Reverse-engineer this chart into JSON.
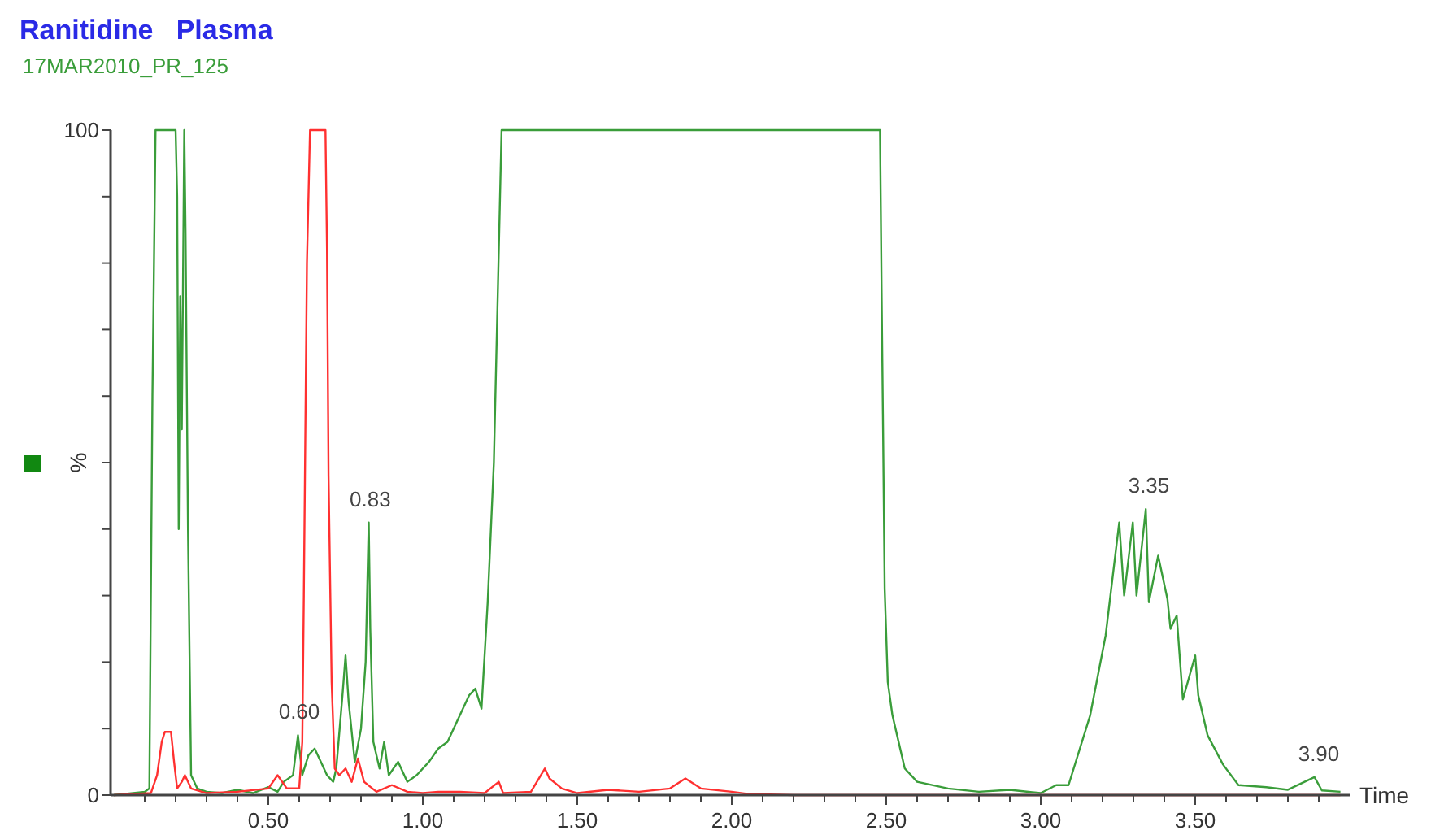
{
  "chart_data": {
    "type": "line",
    "title": "Ranitidine   Plasma",
    "subtitle": "17MAR2010_PR_125",
    "xlabel": "Time",
    "ylabel": "%",
    "xlim": [
      0,
      4
    ],
    "ylim": [
      0,
      100
    ],
    "xticks": [
      {
        "value": 0.1,
        "label": null
      },
      {
        "value": 0.2,
        "label": null
      },
      {
        "value": 0.3,
        "label": null
      },
      {
        "value": 0.4,
        "label": null
      },
      {
        "value": 0.5,
        "label": "0.50"
      },
      {
        "value": 0.6,
        "label": null
      },
      {
        "value": 0.7,
        "label": null
      },
      {
        "value": 0.8,
        "label": null
      },
      {
        "value": 0.9,
        "label": null
      },
      {
        "value": 1,
        "label": "1.00"
      },
      {
        "value": 1.1,
        "label": null
      },
      {
        "value": 1.2,
        "label": null
      },
      {
        "value": 1.3,
        "label": null
      },
      {
        "value": 1.4,
        "label": null
      },
      {
        "value": 1.5,
        "label": "1.50"
      },
      {
        "value": 1.6,
        "label": null
      },
      {
        "value": 1.7,
        "label": null
      },
      {
        "value": 1.8,
        "label": null
      },
      {
        "value": 1.9,
        "label": null
      },
      {
        "value": 2,
        "label": "2.00"
      },
      {
        "value": 2.1,
        "label": null
      },
      {
        "value": 2.2,
        "label": null
      },
      {
        "value": 2.3,
        "label": null
      },
      {
        "value": 2.4,
        "label": null
      },
      {
        "value": 2.5,
        "label": "2.50"
      },
      {
        "value": 2.6,
        "label": null
      },
      {
        "value": 2.7,
        "label": null
      },
      {
        "value": 2.8,
        "label": null
      },
      {
        "value": 2.9,
        "label": null
      },
      {
        "value": 3,
        "label": "3.00"
      },
      {
        "value": 3.1,
        "label": null
      },
      {
        "value": 3.2,
        "label": null
      },
      {
        "value": 3.3,
        "label": null
      },
      {
        "value": 3.4,
        "label": null
      },
      {
        "value": 3.5,
        "label": "3.50"
      },
      {
        "value": 3.6,
        "label": null
      },
      {
        "value": 3.7,
        "label": null
      },
      {
        "value": 3.8,
        "label": null
      },
      {
        "value": 3.9,
        "label": null
      }
    ],
    "yticks": [
      0,
      {
        "value": 10,
        "label": null
      },
      {
        "value": 20,
        "label": null
      },
      {
        "value": 30,
        "label": null
      },
      {
        "value": 40,
        "label": null
      },
      {
        "value": 50,
        "label": null
      },
      {
        "value": 60,
        "label": null
      },
      {
        "value": 70,
        "label": null
      },
      {
        "value": 80,
        "label": null
      },
      {
        "value": 90,
        "label": null
      },
      100
    ],
    "grid": false,
    "marker": "none",
    "line_style": "solid",
    "series": [
      {
        "color": "#3a9d3a",
        "x": [
          0,
          0.1,
          0.115,
          0.125,
          0.135,
          0.2,
          0.205,
          0.21,
          0.215,
          0.22,
          0.228,
          0.232,
          0.24,
          0.25,
          0.27,
          0.3,
          0.35,
          0.4,
          0.45,
          0.5,
          0.53,
          0.55,
          0.58,
          0.596,
          0.61,
          0.63,
          0.65,
          0.67,
          0.69,
          0.71,
          0.72,
          0.74,
          0.75,
          0.76,
          0.78,
          0.8,
          0.815,
          0.825,
          0.83,
          0.84,
          0.86,
          0.875,
          0.89,
          0.92,
          0.95,
          0.98,
          1.02,
          1.05,
          1.08,
          1.12,
          1.15,
          1.17,
          1.19,
          1.21,
          1.23,
          1.245,
          1.255,
          2.48,
          2.485,
          2.49,
          2.495,
          2.505,
          2.52,
          2.535,
          2.56,
          2.6,
          2.7,
          2.8,
          2.9,
          3.0,
          3.05,
          3.09,
          3.16,
          3.21,
          3.254,
          3.27,
          3.298,
          3.31,
          3.34,
          3.35,
          3.38,
          3.41,
          3.42,
          3.44,
          3.46,
          3.5,
          3.51,
          3.54,
          3.59,
          3.64,
          3.73,
          3.8,
          3.886,
          3.91,
          3.97
        ],
        "values": [
          0,
          0.5,
          1,
          60,
          100,
          100,
          90,
          40,
          75,
          55,
          100,
          85,
          40,
          3,
          1,
          0.5,
          0.3,
          0.8,
          0.3,
          1.2,
          0.5,
          2,
          3,
          9,
          3,
          6,
          7,
          5,
          3,
          2,
          4,
          15,
          21,
          14,
          5,
          10,
          20,
          41,
          25,
          8,
          4,
          8,
          3,
          5,
          2,
          3,
          5,
          7,
          8,
          12,
          15,
          16,
          13,
          29,
          50,
          80,
          100,
          100,
          76,
          54,
          31,
          17,
          12,
          9,
          4,
          2,
          1,
          0.5,
          0.8,
          0.3,
          1.5,
          1.5,
          12,
          24,
          41,
          30,
          41,
          30,
          43,
          29,
          36,
          29.5,
          25,
          27,
          14.4,
          21,
          15,
          9,
          4.6,
          1.5,
          1.2,
          0.8,
          2.7,
          0.7,
          0.5
        ]
      },
      {
        "color": "#ff3030",
        "x": [
          0,
          0.12,
          0.14,
          0.155,
          0.165,
          0.185,
          0.195,
          0.205,
          0.22,
          0.23,
          0.25,
          0.3,
          0.4,
          0.5,
          0.53,
          0.56,
          0.6,
          0.61,
          0.615,
          0.625,
          0.635,
          0.685,
          0.69,
          0.695,
          0.705,
          0.715,
          0.73,
          0.75,
          0.77,
          0.79,
          0.81,
          0.85,
          0.9,
          0.95,
          1.0,
          1.05,
          1.12,
          1.2,
          1.246,
          1.26,
          1.35,
          1.395,
          1.41,
          1.45,
          1.5,
          1.6,
          1.7,
          1.8,
          1.85,
          1.9,
          2.0,
          2.05,
          2.2,
          3.97
        ],
        "values": [
          0,
          0.3,
          3,
          8,
          9.5,
          9.5,
          5,
          1,
          2,
          3,
          1,
          0.3,
          0.5,
          1,
          3,
          1,
          1,
          8,
          30,
          80,
          100,
          100,
          82,
          48,
          17,
          4,
          3,
          4,
          2,
          5.5,
          2,
          0.5,
          1.5,
          0.5,
          0.3,
          0.5,
          0.5,
          0.3,
          2,
          0.3,
          0.5,
          4,
          2.5,
          1,
          0.3,
          0.8,
          0.5,
          1,
          2.5,
          1,
          0.5,
          0.2,
          0,
          0
        ]
      }
    ],
    "annotations": [
      {
        "text": "0.60",
        "x": 0.6,
        "y": 9
      },
      {
        "text": "0.83",
        "x": 0.83,
        "y": 41
      },
      {
        "text": "3.35",
        "x": 3.35,
        "y": 43
      },
      {
        "text": "3.90",
        "x": 3.9,
        "y": 2.7
      }
    ]
  }
}
